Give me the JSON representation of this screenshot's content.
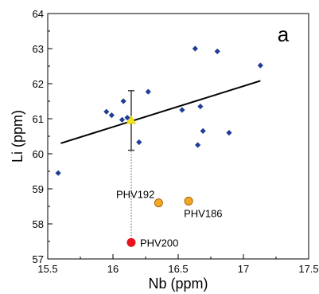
{
  "chart_data": {
    "type": "scatter",
    "panel_label": "a",
    "xlabel": "Nb (ppm)",
    "ylabel": "Li (ppm)",
    "xlim": [
      15.5,
      17.5
    ],
    "ylim": [
      57,
      64
    ],
    "xticks": [
      "15.5",
      "16",
      "16.5",
      "17",
      "17.5"
    ],
    "yticks": [
      "57",
      "58",
      "59",
      "60",
      "61",
      "62",
      "63",
      "64"
    ],
    "grid": false,
    "series": [
      {
        "marker": "diamond",
        "color": "#1f3d99",
        "points": [
          {
            "x": 15.58,
            "y": 59.45
          },
          {
            "x": 15.95,
            "y": 61.2
          },
          {
            "x": 15.99,
            "y": 61.1
          },
          {
            "x": 16.07,
            "y": 60.97
          },
          {
            "x": 16.08,
            "y": 61.5
          },
          {
            "x": 16.11,
            "y": 61.03
          },
          {
            "x": 16.2,
            "y": 60.33
          },
          {
            "x": 16.27,
            "y": 61.77
          },
          {
            "x": 16.53,
            "y": 61.25
          },
          {
            "x": 16.63,
            "y": 63.0
          },
          {
            "x": 16.65,
            "y": 60.25
          },
          {
            "x": 16.67,
            "y": 61.35
          },
          {
            "x": 16.69,
            "y": 60.65
          },
          {
            "x": 16.8,
            "y": 62.92
          },
          {
            "x": 16.89,
            "y": 60.6
          },
          {
            "x": 17.13,
            "y": 62.52
          }
        ]
      },
      {
        "marker": "triangle",
        "color": "#f2e218",
        "points": [
          {
            "x": 16.14,
            "y": 60.95
          }
        ],
        "error_y": [
          60.1,
          61.8
        ]
      },
      {
        "marker": "circle",
        "color": "#f5a623",
        "points": [
          {
            "x": 16.35,
            "y": 58.6,
            "label": "PHV192"
          },
          {
            "x": 16.58,
            "y": 58.65,
            "label": "PHV186"
          }
        ]
      },
      {
        "marker": "circle",
        "color": "#e8141b",
        "points": [
          {
            "x": 16.14,
            "y": 57.47,
            "label": "PHV200"
          }
        ]
      }
    ],
    "trendline": {
      "x": [
        15.6,
        17.13
      ],
      "y": [
        60.3,
        62.08
      ]
    },
    "dotted_link": {
      "x": 16.14,
      "y_from": 60.95,
      "y_to": 57.47
    }
  }
}
